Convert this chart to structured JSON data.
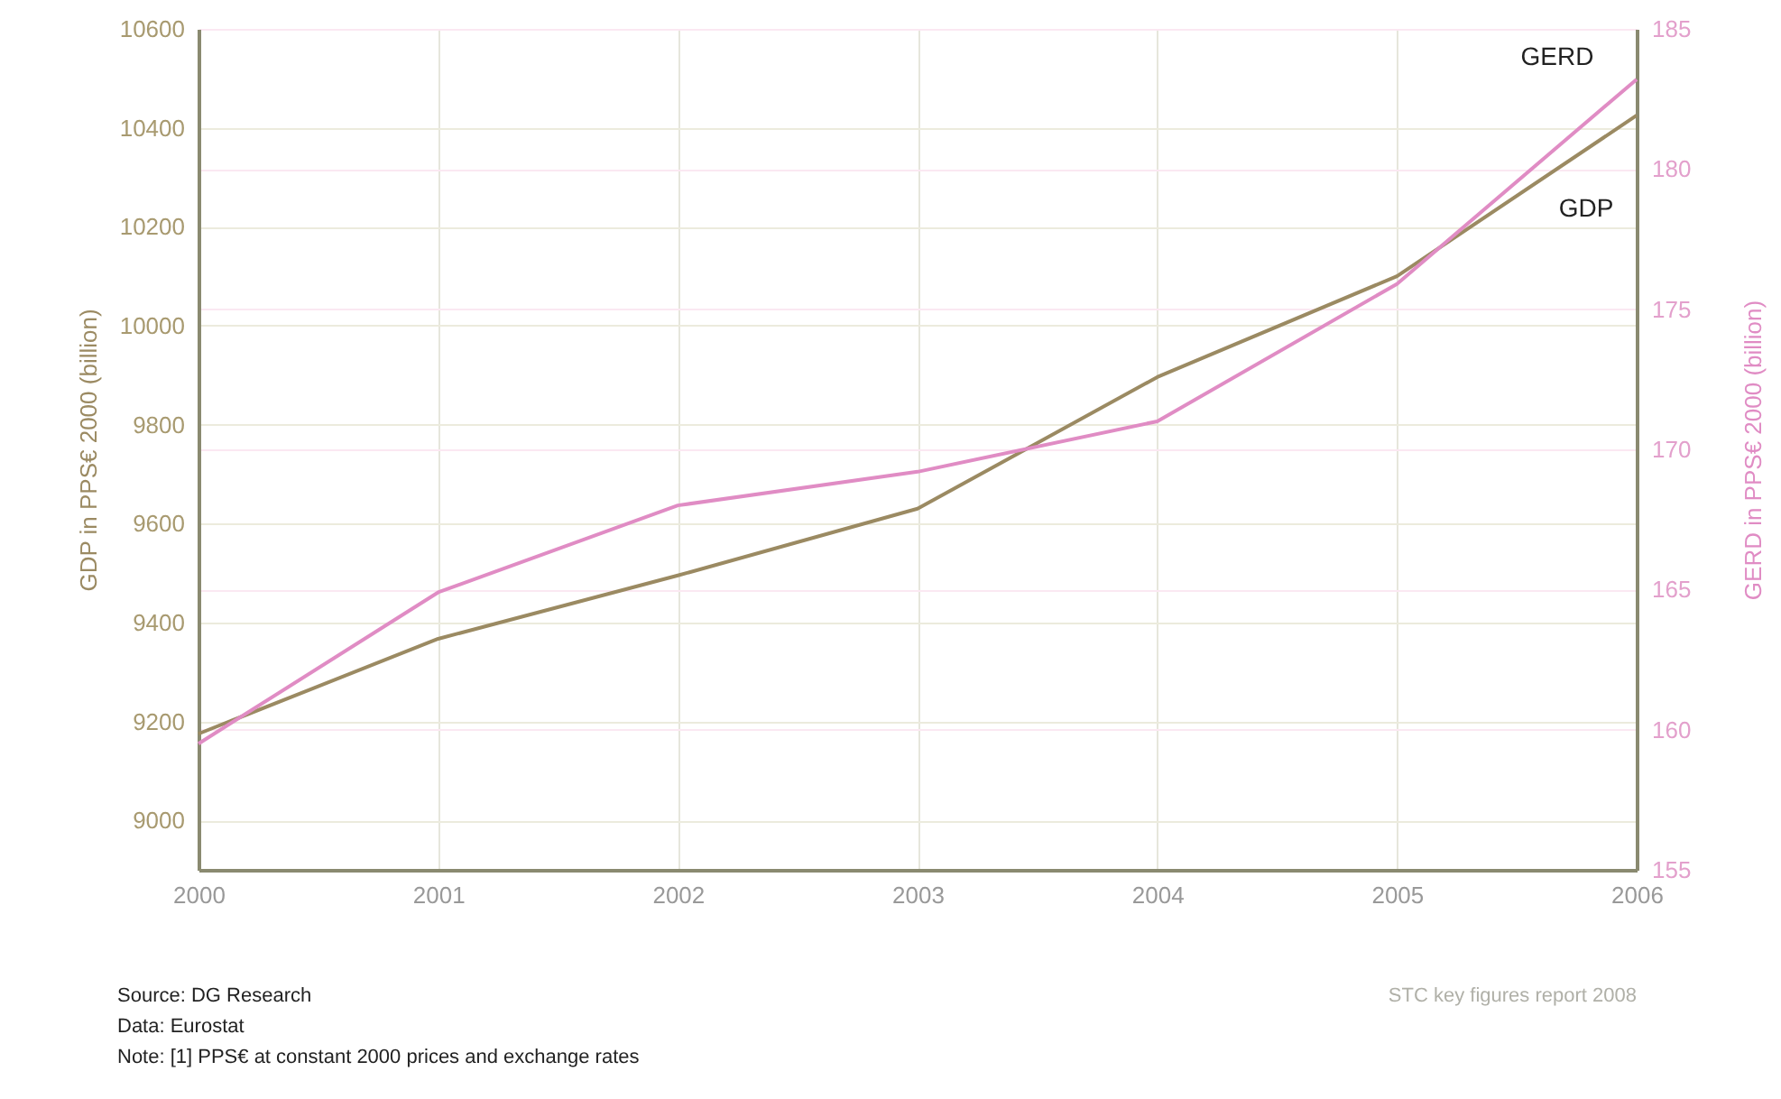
{
  "chart_data": {
    "type": "line",
    "ylabel": "GDP in PPS€ 2000 (billion)",
    "y2label": "GERD in PPS€ 2000 (billion)",
    "x": [
      2000,
      2001,
      2002,
      2003,
      2004,
      2005,
      2006
    ],
    "xlim": [
      2000,
      2006
    ],
    "xticks": [
      2000,
      2001,
      2002,
      2003,
      2004,
      2005,
      2006
    ],
    "ylim": [
      8900,
      10600
    ],
    "yticks": [
      9000,
      9200,
      9400,
      9600,
      9800,
      10000,
      10200,
      10400,
      10600
    ],
    "y2lim": [
      155,
      185
    ],
    "y2ticks": [
      155,
      160,
      165,
      170,
      175,
      180,
      185
    ],
    "grid": true,
    "marker": "none",
    "line_style": "solid",
    "series": [
      {
        "name": "GDP",
        "color": "#9b8a62",
        "values": [
          9175,
          9367,
          9495,
          9630,
          9896,
          10100,
          10425
        ]
      },
      {
        "name": "GERD",
        "color": "#e08cc4",
        "axis": "y2",
        "values": [
          159.5,
          164.9,
          168,
          169.2,
          171,
          175.9,
          183.2
        ]
      }
    ],
    "annotations": [
      "Source:  DG Research",
      "Data:  Eurostat",
      "Note:  [1] PPS€ at constant 2000 prices and exchange rates",
      "STC key figures report 2008"
    ]
  }
}
